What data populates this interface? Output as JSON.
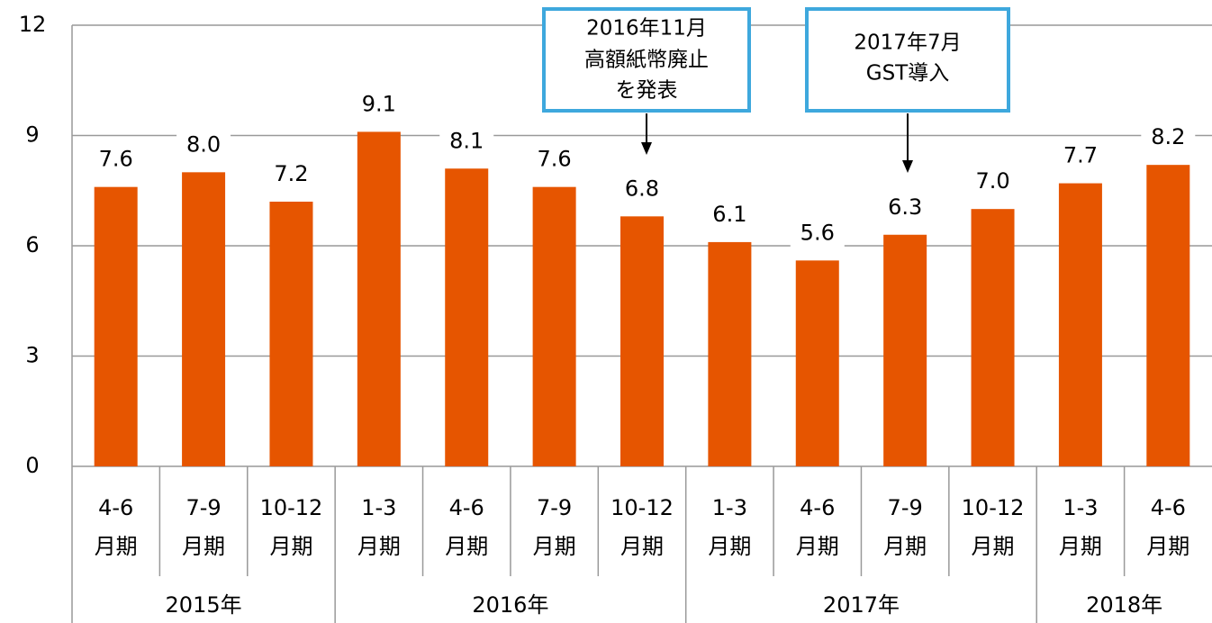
{
  "chart_data": {
    "type": "bar",
    "groups": [
      {
        "label": "2015年",
        "categories": [
          [
            "4-6",
            "月期"
          ],
          [
            "7-9",
            "月期"
          ],
          [
            "10-12",
            "月期"
          ]
        ]
      },
      {
        "label": "2016年",
        "categories": [
          [
            "1-3",
            "月期"
          ],
          [
            "4-6",
            "月期"
          ],
          [
            "7-9",
            "月期"
          ],
          [
            "10-12",
            "月期"
          ]
        ]
      },
      {
        "label": "2017年",
        "categories": [
          [
            "1-3",
            "月期"
          ],
          [
            "4-6",
            "月期"
          ],
          [
            "7-9",
            "月期"
          ],
          [
            "10-12",
            "月期"
          ]
        ]
      },
      {
        "label": "2018年",
        "categories": [
          [
            "1-3",
            "月期"
          ],
          [
            "4-6",
            "月期"
          ]
        ]
      }
    ],
    "values": [
      7.6,
      8.0,
      7.2,
      9.1,
      8.1,
      7.6,
      6.8,
      6.1,
      5.6,
      6.3,
      7.0,
      7.7,
      8.2
    ],
    "value_labels": [
      "7.6",
      "8.0",
      "7.2",
      "9.1",
      "8.1",
      "7.6",
      "6.8",
      "6.1",
      "5.6",
      "6.3",
      "7.0",
      "7.7",
      "8.2"
    ],
    "color": "#e65500",
    "ylim": [
      0,
      12
    ],
    "yticks": [
      0,
      3,
      6,
      9,
      12
    ],
    "grid": true,
    "annotations": [
      {
        "lines": [
          "2016年11月",
          "高額紙幣廃止",
          "を発表"
        ]
      },
      {
        "lines": [
          "2017年7月",
          "GST導入"
        ]
      }
    ]
  }
}
